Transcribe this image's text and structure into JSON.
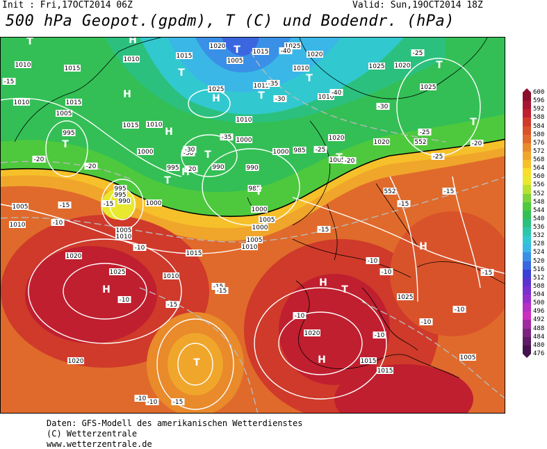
{
  "header": {
    "init": "Init : Fri,17OCT2014 06Z",
    "valid": "Valid: Sun,19OCT2014 18Z",
    "title": "500 hPa Geopot.(gpdm), T (C) und Bodendr. (hPa)"
  },
  "footer": {
    "line1": "Daten: GFS-Modell des amerikanischen Wetterdienstes",
    "line2": "(C) Wetterzentrale",
    "line3": "www.wetterzentrale.de"
  },
  "colorbar": {
    "ticks": [
      "600",
      "596",
      "592",
      "588",
      "584",
      "580",
      "576",
      "572",
      "568",
      "564",
      "560",
      "556",
      "552",
      "548",
      "544",
      "540",
      "536",
      "532",
      "528",
      "524",
      "520",
      "516",
      "512",
      "508",
      "504",
      "500",
      "496",
      "492",
      "488",
      "484",
      "480",
      "476"
    ],
    "colors": [
      "#8b0e2a",
      "#a81530",
      "#c01f2f",
      "#cf3a2b",
      "#d9532a",
      "#e06a2b",
      "#e98a2b",
      "#f0a62b",
      "#f6c02a",
      "#f9de2b",
      "#e8e82e",
      "#b9e033",
      "#7fd33a",
      "#4ec93e",
      "#33bf55",
      "#2cc07f",
      "#2ec6a8",
      "#31c9cf",
      "#3ab7e6",
      "#3a90e6",
      "#3a66e0",
      "#3a3fd6",
      "#5a33cf",
      "#7a2fcf",
      "#962fc9",
      "#b530c4",
      "#cc2fc0",
      "#a02a9f",
      "#7b2281",
      "#5e1b66",
      "#44134d"
    ]
  },
  "map_labels": {
    "highs": [
      "H",
      "H",
      "H",
      "H",
      "H",
      "H",
      "H",
      "H",
      "H"
    ],
    "lows": [
      "T",
      "T",
      "T",
      "T",
      "T",
      "T",
      "T",
      "T",
      "T",
      "T",
      "T",
      "T",
      "T",
      "T"
    ],
    "isobars": [
      "1010",
      "1015",
      "1010",
      "1015",
      "1020",
      "1025",
      "1015",
      "1025",
      "1020",
      "1005",
      "1025",
      "1010",
      "1010",
      "1005",
      "995",
      "1015",
      "1010",
      "1010",
      "1000",
      "1000",
      "990",
      "990",
      "995",
      "985",
      "1005",
      "1000",
      "985",
      "1020",
      "1000",
      "995",
      "990",
      "1005",
      "1025",
      "1000",
      "995",
      "1000",
      "1010",
      "1015",
      "1005",
      "1010",
      "1020",
      "1025",
      "1015",
      "1015",
      "1010",
      "1005",
      "1025",
      "1020",
      "1020",
      "1020",
      "1015",
      "1015",
      "1005",
      "1020",
      "552",
      "552",
      "1010",
      "1010",
      "1005"
    ],
    "temps": [
      "-15",
      "-20",
      "-15",
      "-20",
      "-15",
      "-10",
      "-10",
      "-15",
      "-10",
      "-15",
      "-40",
      "-35",
      "-30",
      "-30",
      "-35",
      "-25",
      "-20",
      "-40",
      "-25",
      "-30",
      "-25",
      "-25",
      "-20",
      "-15",
      "-15",
      "-15",
      "-10",
      "-10",
      "-10",
      "-10",
      "-10",
      "-15",
      "-10",
      "-15",
      "-20",
      "-30",
      "-15",
      "-10",
      "-10"
    ]
  }
}
